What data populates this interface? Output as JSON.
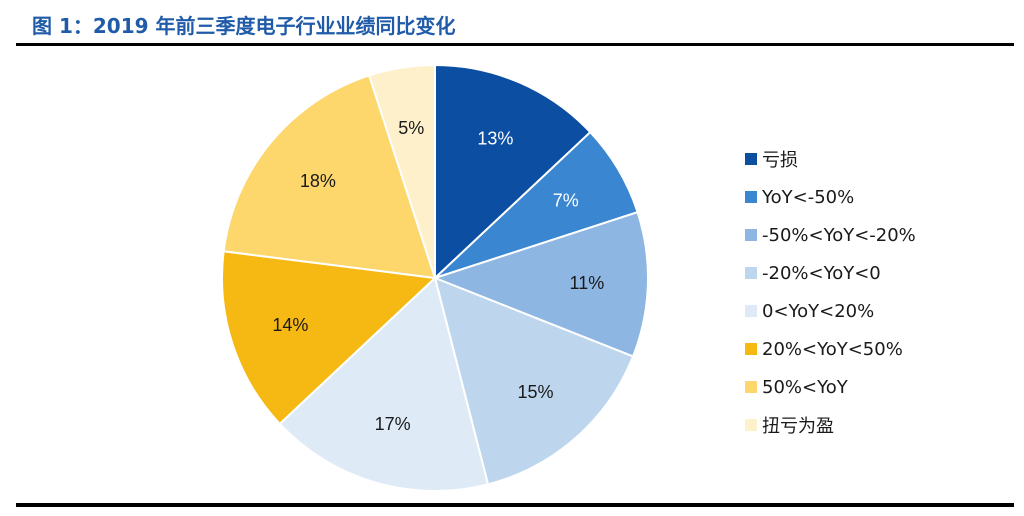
{
  "title": "图 1：2019 年前三季度电子行业业绩同比变化",
  "chart_data": {
    "type": "pie",
    "title": "图 1：2019 年前三季度电子行业业绩同比变化",
    "legend_position": "right",
    "slices": [
      {
        "label": "亏损",
        "value": 13,
        "display": "13%",
        "color": "#0b4ea2"
      },
      {
        "label": "YoY<-50%",
        "value": 7,
        "display": "7%",
        "color": "#3a86d1"
      },
      {
        "label": "-50%<YoY<-20%",
        "value": 11,
        "display": "11%",
        "color": "#8db6e2"
      },
      {
        "label": "-20%<YoY<0",
        "value": 15,
        "display": "15%",
        "color": "#bdd6ee"
      },
      {
        "label": "0<YoY<20%",
        "value": 17,
        "display": "17%",
        "color": "#deeaf6"
      },
      {
        "label": "20%<YoY<50%",
        "value": 14,
        "display": "14%",
        "color": "#f6b914"
      },
      {
        "label": "50%<YoY",
        "value": 18,
        "display": "18%",
        "color": "#fdd66c"
      },
      {
        "label": "扭亏为盈",
        "value": 5,
        "display": "5%",
        "color": "#fff0cc"
      }
    ]
  }
}
